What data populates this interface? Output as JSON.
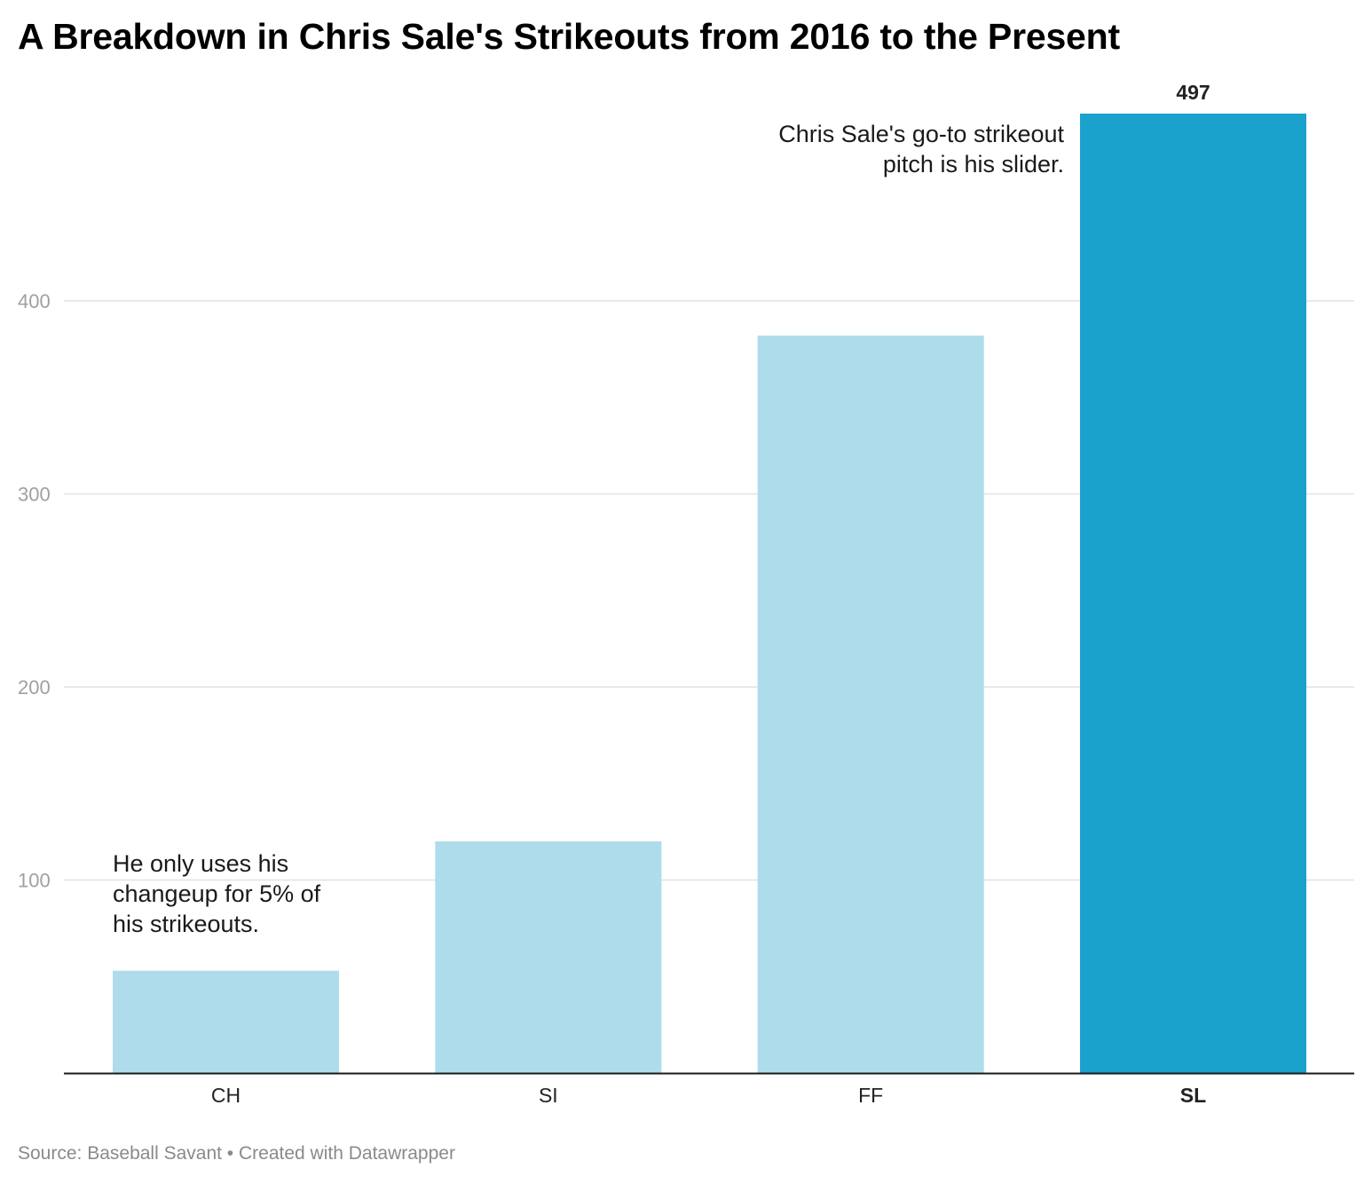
{
  "title": "A Breakdown in Chris Sale's Strikeouts from 2016 to the Present",
  "source_text": "Source: Baseball Savant • Created with Datawrapper",
  "annotations": {
    "changeup": [
      "He only uses his",
      "changeup for 5% of",
      "his strikeouts."
    ],
    "slider": [
      "Chris Sale's go-to strikeout",
      "pitch is his slider."
    ]
  },
  "colors": {
    "bar_default": "#aedcea",
    "bar_highlight": "#1aa1cc",
    "grid": "#e2e2e2",
    "axis": "#1a1a1a"
  },
  "chart_data": {
    "type": "bar",
    "title": "A Breakdown in Chris Sale's Strikeouts from 2016 to the Present",
    "xlabel": "",
    "ylabel": "",
    "categories": [
      "CH",
      "SI",
      "FF",
      "SL"
    ],
    "values": [
      53,
      120,
      382,
      497
    ],
    "highlight": "SL",
    "value_labels": {
      "SL": "497"
    },
    "yticks": [
      100,
      200,
      300,
      400
    ],
    "ylim": [
      0,
      497
    ],
    "grid": true,
    "legend": "none"
  }
}
